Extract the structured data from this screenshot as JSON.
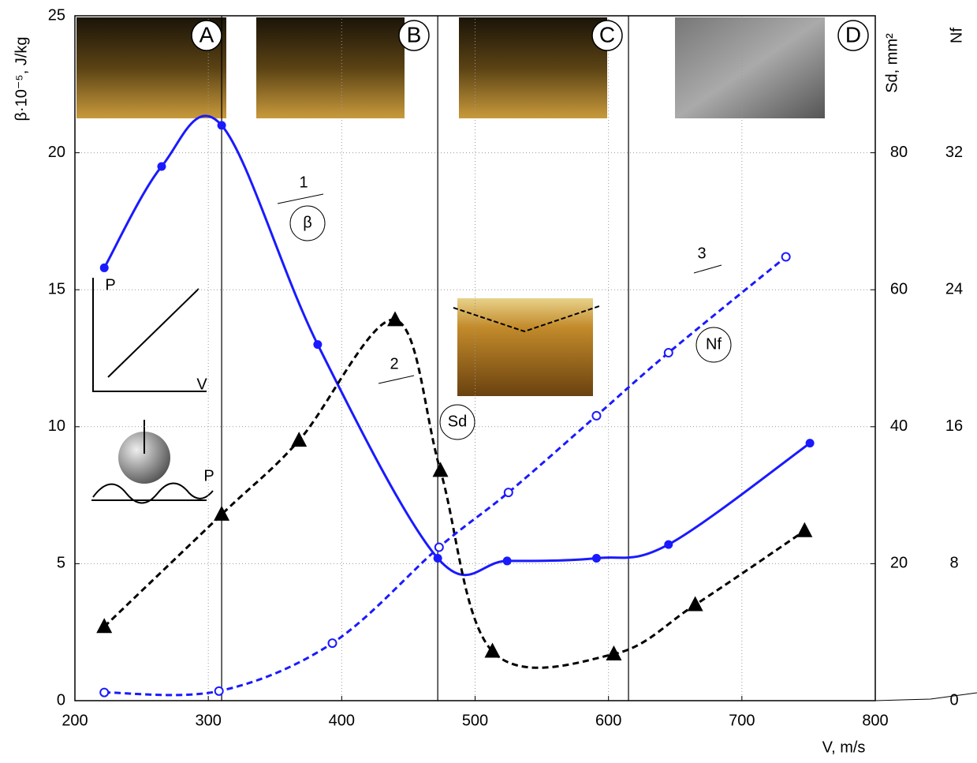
{
  "chart_data": {
    "type": "line",
    "xlabel": "V, m/s",
    "ylabel": "β·10⁻⁵, J/kg",
    "y2label": "Sd, mm²",
    "y3label": "Nf",
    "xlim": [
      200,
      800
    ],
    "xticks": [
      200,
      300,
      400,
      500,
      600,
      700,
      800
    ],
    "ylim": [
      0,
      25
    ],
    "yticks": [
      0,
      5,
      10,
      15,
      20,
      25
    ],
    "y2lim": [
      0,
      100
    ],
    "y2ticks": [
      20,
      40,
      60,
      80
    ],
    "y3lim": [
      0,
      40
    ],
    "y3ticks": [
      0,
      8,
      16,
      24,
      32
    ],
    "grid": true,
    "regions": [
      "A",
      "B",
      "C",
      "D"
    ],
    "boundaries": [
      310,
      472,
      615
    ],
    "inset_labels": [
      "P",
      "V",
      "P"
    ],
    "series": [
      {
        "name": "1",
        "symbol": "β",
        "color": "#1a1aff",
        "dash": false,
        "marker": "dot",
        "x": [
          222,
          265,
          310,
          382,
          472,
          524,
          591,
          645,
          751
        ],
        "values": [
          15.8,
          19.5,
          21,
          13,
          5.2,
          5.1,
          5.2,
          5.7,
          9.4
        ]
      },
      {
        "name": "2",
        "symbol": "Sd",
        "color": "#000000",
        "dash": true,
        "marker": "triangle",
        "axis": "y2",
        "x": [
          222,
          310,
          368,
          440,
          474,
          513,
          604,
          665,
          747
        ],
        "values": [
          10.8,
          27.2,
          38,
          55.6,
          33.6,
          7.2,
          6.8,
          14,
          24.8
        ]
      },
      {
        "name": "3",
        "symbol": "Nf",
        "color": "#1a1aff",
        "dash": true,
        "marker": "circle",
        "axis": "y3",
        "x": [
          222,
          308,
          393,
          473,
          525,
          591,
          645,
          733
        ],
        "values": [
          0.48,
          0.56,
          3.36,
          8.96,
          12.16,
          16.64,
          20.32,
          25.92
        ]
      }
    ]
  }
}
